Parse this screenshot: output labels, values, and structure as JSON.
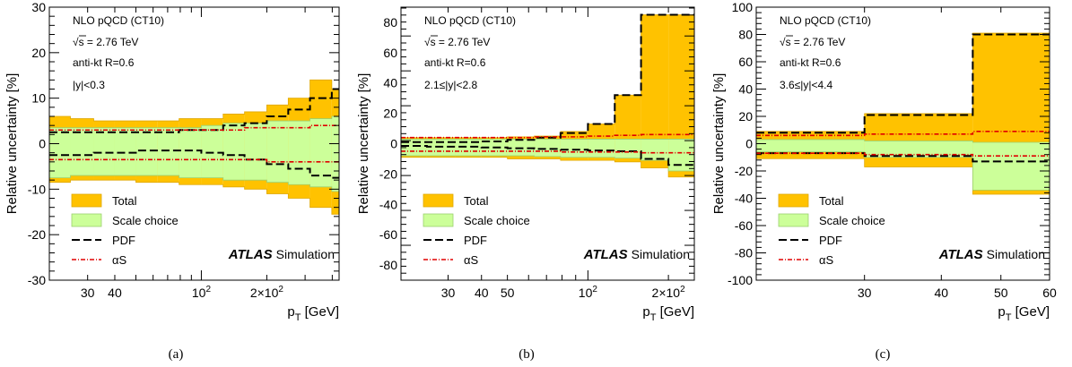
{
  "colors": {
    "total": "#ffc200",
    "total_edge": "#e0a800",
    "scale": "#ccff99",
    "scale_edge": "#9ccf6e",
    "pdf": "#000000",
    "alphas": "#e00000",
    "axis": "#000000"
  },
  "chart_data": [
    {
      "type": "area",
      "panel_label": "(a)",
      "ylabel": "Relative uncertainty [%]",
      "xlabel_main": "p",
      "xlabel_sub": "T",
      "xlabel_unit": " [GeV]",
      "xscale": "log",
      "xlim": [
        20,
        430
      ],
      "ylim": [
        -30,
        30
      ],
      "ytick_labels": [
        "-30",
        "-20",
        "-10",
        "0",
        "10",
        "20",
        "30"
      ],
      "xtick_labels": [
        {
          "x": 30,
          "base": "30",
          "sup": ""
        },
        {
          "x": 40,
          "base": "40",
          "sup": ""
        },
        {
          "x": 100,
          "base": "10",
          "sup": "2"
        },
        {
          "x": 200,
          "base": "2×10",
          "sup": "2"
        }
      ],
      "text_lines": [
        "NLO pQCD (CT10)",
        "√s = 2.76 TeV",
        "anti-kt R=0.6",
        "|y|<0.3"
      ],
      "legend": [
        {
          "name": "Total",
          "style": "total"
        },
        {
          "name": "Scale choice",
          "style": "scale"
        },
        {
          "name": "PDF",
          "style": "pdf"
        },
        {
          "name": "αS",
          "style": "alphas"
        }
      ],
      "atlas_bold": "ATLAS",
      "atlas_text": "Simulation",
      "bin_edges": [
        20,
        25,
        32,
        40,
        50,
        63,
        79,
        100,
        126,
        158,
        200,
        251,
        316,
        398,
        430
      ],
      "series": [
        {
          "name": "Total",
          "up": [
            6,
            5.5,
            5,
            5,
            5,
            5,
            5.5,
            5.5,
            6.5,
            7,
            8.5,
            10,
            14,
            12
          ],
          "down": [
            -8.5,
            -8,
            -8,
            -8,
            -8.5,
            -8.5,
            -9,
            -9,
            -9.5,
            -10,
            -11,
            -12,
            -14,
            -15.5
          ]
        },
        {
          "name": "Scale choice",
          "up": [
            3.5,
            3.5,
            3.5,
            3.5,
            3.5,
            3.5,
            3.5,
            4,
            4.5,
            4.5,
            5,
            5,
            5.5,
            6
          ],
          "down": [
            -7.5,
            -7,
            -7,
            -7,
            -7,
            -7,
            -7.5,
            -7.5,
            -8,
            -8,
            -8.5,
            -9,
            -9.5,
            -10.5
          ]
        },
        {
          "name": "PDF",
          "up": [
            2.5,
            2.5,
            2.5,
            2.5,
            2.5,
            2.5,
            3,
            3,
            4,
            4.5,
            6,
            7.5,
            10,
            12
          ],
          "down": [
            -2.5,
            -2.5,
            -2,
            -2,
            -1.5,
            -1.5,
            -1.5,
            -2,
            -2.5,
            -3.5,
            -4.5,
            -5.5,
            -7,
            -7.5
          ]
        },
        {
          "name": "αS",
          "up": [
            3,
            3,
            3,
            3,
            3,
            3,
            3,
            3,
            3,
            3.5,
            3.5,
            3.5,
            4,
            4
          ],
          "down": [
            -3.5,
            -3.5,
            -3.5,
            -3.5,
            -3.5,
            -3.5,
            -3.5,
            -3.5,
            -3.5,
            -3.5,
            -4,
            -4,
            -4,
            -4
          ]
        }
      ]
    },
    {
      "type": "area",
      "panel_label": "(b)",
      "ylabel": "Relative uncertainty [%]",
      "xlabel_main": "p",
      "xlabel_sub": "T",
      "xlabel_unit": " [GeV]",
      "xscale": "log",
      "xlim": [
        20,
        250
      ],
      "ylim": [
        -90,
        90
      ],
      "ytick_labels": [
        "-80",
        "-60",
        "-40",
        "-20",
        "0",
        "20",
        "40",
        "60",
        "80"
      ],
      "xtick_labels": [
        {
          "x": 30,
          "base": "30",
          "sup": ""
        },
        {
          "x": 40,
          "base": "40",
          "sup": ""
        },
        {
          "x": 50,
          "base": "50",
          "sup": ""
        },
        {
          "x": 100,
          "base": "10",
          "sup": "2"
        },
        {
          "x": 200,
          "base": "2×10",
          "sup": "2"
        }
      ],
      "text_lines": [
        "NLO pQCD (CT10)",
        "√s = 2.76 TeV",
        "anti-kt R=0.6",
        "2.1≤|y|<2.8"
      ],
      "legend": [
        {
          "name": "Total",
          "style": "total"
        },
        {
          "name": "Scale choice",
          "style": "scale"
        },
        {
          "name": "PDF",
          "style": "pdf"
        },
        {
          "name": "αS",
          "style": "alphas"
        }
      ],
      "atlas_bold": "ATLAS",
      "atlas_text": "Simulation",
      "bin_edges": [
        20,
        25,
        32,
        40,
        50,
        63,
        79,
        100,
        126,
        158,
        200,
        250
      ],
      "series": [
        {
          "name": "Total",
          "up": [
            4,
            4,
            4,
            4,
            4.5,
            5,
            8,
            13,
            32,
            85,
            85
          ],
          "down": [
            -9,
            -9,
            -9,
            -9,
            -10,
            -10,
            -11,
            -11,
            -12,
            -16,
            -22
          ]
        },
        {
          "name": "Scale choice",
          "up": [
            3,
            3,
            3,
            3,
            3,
            3,
            3,
            3,
            3,
            3,
            3
          ],
          "down": [
            -8,
            -8,
            -8,
            -8,
            -8,
            -8.5,
            -9,
            -9,
            -9.5,
            -11,
            -18
          ]
        },
        {
          "name": "PDF",
          "up": [
            1,
            1,
            1,
            1.5,
            2.5,
            4,
            7,
            13,
            32,
            85,
            85
          ],
          "down": [
            -1.5,
            -2,
            -2,
            -2.5,
            -3,
            -3.5,
            -4,
            -4.5,
            -5,
            -10,
            -14
          ]
        },
        {
          "name": "αS",
          "up": [
            4,
            4,
            4,
            4,
            4,
            4.5,
            4.5,
            5,
            5.5,
            6,
            6
          ],
          "down": [
            -5,
            -5,
            -5,
            -5,
            -5,
            -5,
            -5.5,
            -5.5,
            -5.5,
            -6,
            -6
          ]
        }
      ]
    },
    {
      "type": "area",
      "panel_label": "(c)",
      "ylabel": "Relative uncertainty [%]",
      "xlabel_main": "p",
      "xlabel_sub": "T",
      "xlabel_unit": " [GeV]",
      "xscale": "log",
      "xlim": [
        20,
        60
      ],
      "ylim": [
        -100,
        100
      ],
      "ytick_labels": [
        "-100",
        "-80",
        "-60",
        "-40",
        "-20",
        "0",
        "20",
        "40",
        "60",
        "80",
        "100"
      ],
      "xtick_labels": [
        {
          "x": 30,
          "base": "30",
          "sup": ""
        },
        {
          "x": 40,
          "base": "40",
          "sup": ""
        },
        {
          "x": 50,
          "base": "50",
          "sup": ""
        },
        {
          "x": 60,
          "base": "60",
          "sup": ""
        }
      ],
      "text_lines": [
        "NLO pQCD (CT10)",
        "√s = 2.76 TeV",
        "anti-kt R=0.6",
        "3.6≤|y|<4.4"
      ],
      "legend": [
        {
          "name": "Total",
          "style": "total"
        },
        {
          "name": "Scale choice",
          "style": "scale"
        },
        {
          "name": "PDF",
          "style": "pdf"
        },
        {
          "name": "αS",
          "style": "alphas"
        }
      ],
      "atlas_bold": "ATLAS",
      "atlas_text": "Simulation",
      "bin_edges": [
        20,
        30,
        45,
        60
      ],
      "series": [
        {
          "name": "Total",
          "up": [
            9,
            22,
            81
          ],
          "down": [
            -11,
            -17,
            -37
          ]
        },
        {
          "name": "Scale choice",
          "up": [
            3,
            2,
            1
          ],
          "down": [
            -6,
            -10,
            -34
          ]
        },
        {
          "name": "PDF",
          "up": [
            8,
            21,
            80
          ],
          "down": [
            -7,
            -9,
            -13
          ]
        },
        {
          "name": "αS",
          "up": [
            6,
            7,
            9
          ],
          "down": [
            -7,
            -8,
            -9
          ]
        }
      ]
    }
  ]
}
